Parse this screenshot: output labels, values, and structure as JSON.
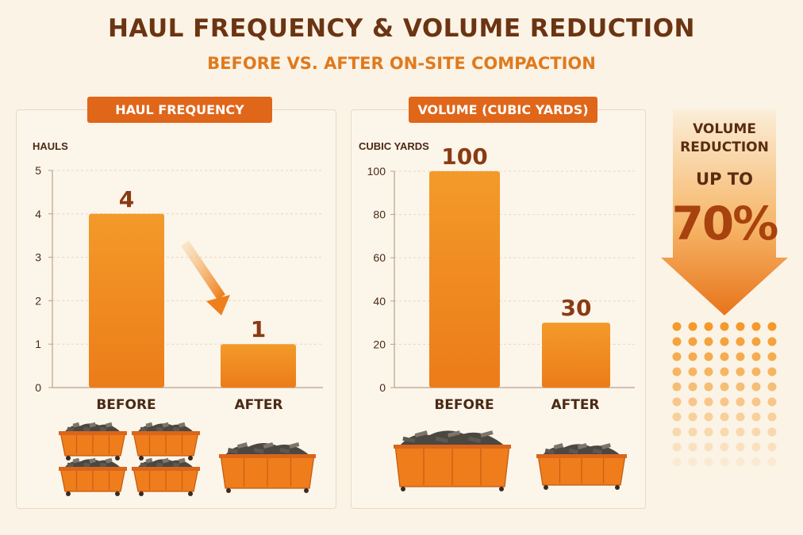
{
  "header": {
    "title": "HAUL FREQUENCY & VOLUME REDUCTION",
    "subtitle": "BEFORE VS. AFTER ON-SITE COMPACTION"
  },
  "panels": {
    "haul_tag": "HAUL FREQUENCY",
    "volume_tag": "VOLUME (CUBIC YARDS)"
  },
  "callout": {
    "line1": "VOLUME",
    "line2": "REDUCTION",
    "line3": "UP TO",
    "value": "70%"
  },
  "colors": {
    "accent": "#e0661a",
    "bar": "#f08a1f",
    "title": "#6b3412",
    "subtitle": "#e07a1e"
  },
  "chart_data": [
    {
      "type": "bar",
      "title": "HAUL FREQUENCY",
      "ylabel": "HAULS",
      "categories": [
        "BEFORE",
        "AFTER"
      ],
      "values": [
        4,
        1
      ],
      "data_labels": [
        "4",
        "1"
      ],
      "ylim": [
        0,
        5
      ],
      "yticks": [
        0,
        1,
        2,
        3,
        4,
        5
      ],
      "grid": true,
      "dumpsters_shown": {
        "before": 4,
        "after": 1
      }
    },
    {
      "type": "bar",
      "title": "VOLUME (CUBIC YARDS)",
      "ylabel": "CUBIC YARDS",
      "categories": [
        "BEFORE",
        "AFTER"
      ],
      "values": [
        100,
        30
      ],
      "data_labels": [
        "100",
        "30"
      ],
      "ylim": [
        0,
        100
      ],
      "yticks": [
        0,
        20,
        40,
        60,
        80,
        100
      ],
      "grid": true,
      "dumpsters_shown": {
        "before": 1,
        "after": 1
      }
    }
  ]
}
